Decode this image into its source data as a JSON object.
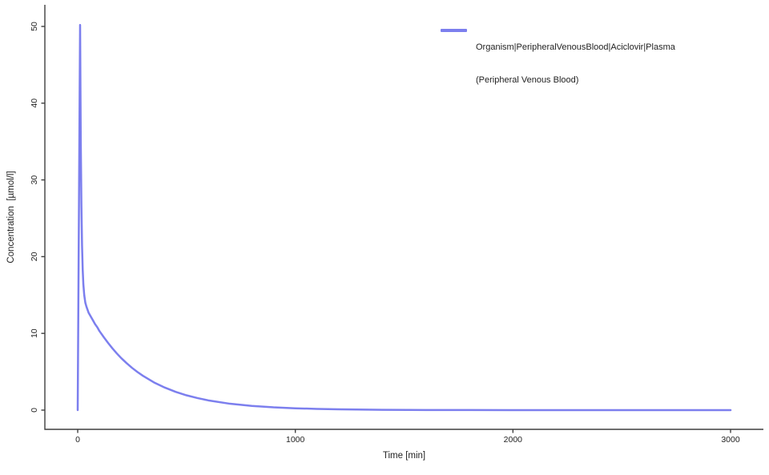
{
  "figure": {
    "background_color": "#ffffff",
    "axis_color": "#3f3f3f",
    "text_color": "#1f1f1f"
  },
  "axes": {
    "x_label": "Time [min]",
    "y_label": "Concentration  [µmol/l]"
  },
  "legend": {
    "line1": "Organism|PeripheralVenousBlood|Aciclovir|Plasma",
    "line2": "(Peripheral Venous Blood)",
    "swatch_color": "#7c7fee"
  },
  "chart_data": {
    "type": "line",
    "title": "",
    "xlabel": "Time [min]",
    "ylabel": "Concentration [µmol/l]",
    "xlim": [
      0,
      3000
    ],
    "ylim": [
      0,
      50
    ],
    "x_ticks": [
      0,
      1000,
      2000,
      3000
    ],
    "y_ticks": [
      0,
      10,
      20,
      30,
      40,
      50
    ],
    "grid": false,
    "legend_position": "top-right",
    "series": [
      {
        "name": "Organism|PeripheralVenousBlood|Aciclovir|Plasma (Peripheral Venous Blood)",
        "color": "#7c7fee",
        "line_width": 2.5,
        "x": [
          0,
          3,
          6,
          9,
          11,
          14,
          17,
          20,
          23,
          26,
          30,
          35,
          40,
          50,
          60,
          70,
          80,
          90,
          100,
          120,
          140,
          160,
          180,
          200,
          225,
          250,
          275,
          300,
          350,
          400,
          450,
          500,
          550,
          600,
          700,
          800,
          900,
          1000,
          1100,
          1200,
          1400,
          1600,
          1800,
          2000,
          2250,
          2500,
          2750,
          3000
        ],
        "y": [
          0,
          13.7,
          27.4,
          41.1,
          50.2,
          35.3,
          26.6,
          21.4,
          18.3,
          16.4,
          15.0,
          14.0,
          13.5,
          12.7,
          12.2,
          11.7,
          11.2,
          10.8,
          10.3,
          9.5,
          8.74,
          8.03,
          7.38,
          6.78,
          6.11,
          5.5,
          4.96,
          4.47,
          3.62,
          2.94,
          2.38,
          1.93,
          1.57,
          1.27,
          0.83,
          0.55,
          0.36,
          0.24,
          0.16,
          0.1,
          0.044,
          0.019,
          0.008,
          0.004,
          0.0012,
          0.0004,
          0.0002,
          0.0001
        ]
      }
    ]
  }
}
